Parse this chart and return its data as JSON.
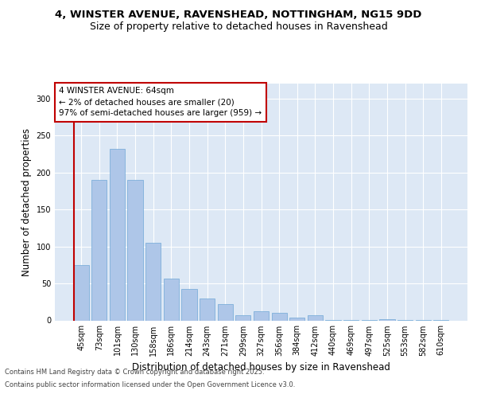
{
  "title_line1": "4, WINSTER AVENUE, RAVENSHEAD, NOTTINGHAM, NG15 9DD",
  "title_line2": "Size of property relative to detached houses in Ravenshead",
  "xlabel": "Distribution of detached houses by size in Ravenshead",
  "ylabel": "Number of detached properties",
  "bar_labels": [
    "45sqm",
    "73sqm",
    "101sqm",
    "130sqm",
    "158sqm",
    "186sqm",
    "214sqm",
    "243sqm",
    "271sqm",
    "299sqm",
    "327sqm",
    "356sqm",
    "384sqm",
    "412sqm",
    "440sqm",
    "469sqm",
    "497sqm",
    "525sqm",
    "553sqm",
    "582sqm",
    "610sqm"
  ],
  "bar_values": [
    75,
    190,
    232,
    190,
    105,
    57,
    43,
    30,
    22,
    7,
    12,
    10,
    4,
    7,
    1,
    1,
    1,
    2,
    1,
    1,
    1
  ],
  "bar_color": "#aec6e8",
  "bar_edgecolor": "#6fa8d6",
  "highlight_color": "#c00000",
  "annotation_text": "4 WINSTER AVENUE: 64sqm\n← 2% of detached houses are smaller (20)\n97% of semi-detached houses are larger (959) →",
  "annotation_box_color": "#ffffff",
  "annotation_box_edgecolor": "#c00000",
  "ylim": [
    0,
    320
  ],
  "yticks": [
    0,
    50,
    100,
    150,
    200,
    250,
    300
  ],
  "background_color": "#dde8f5",
  "grid_color": "#ffffff",
  "footer_line1": "Contains HM Land Registry data © Crown copyright and database right 2025.",
  "footer_line2": "Contains public sector information licensed under the Open Government Licence v3.0.",
  "title_fontsize": 9.5,
  "subtitle_fontsize": 9,
  "axis_label_fontsize": 8.5,
  "tick_fontsize": 7,
  "annotation_fontsize": 7.5,
  "footer_fontsize": 6
}
